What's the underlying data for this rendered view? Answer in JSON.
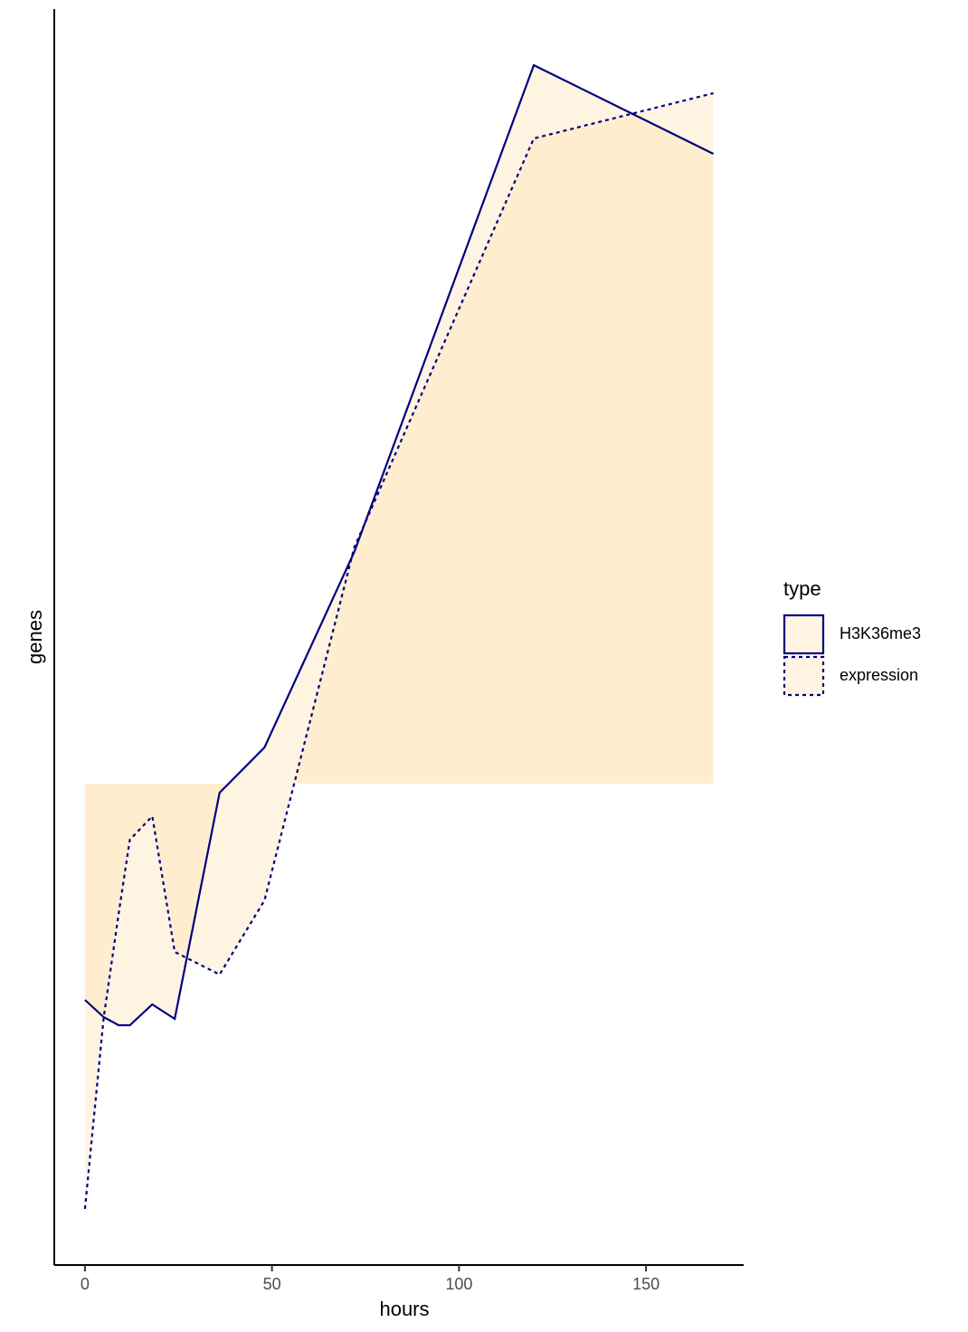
{
  "chart_data": {
    "type": "area",
    "x_label": "hours",
    "y_label": "genes",
    "x": [
      0,
      5,
      9,
      12,
      18,
      24,
      36,
      48,
      72,
      120,
      168
    ],
    "series": [
      {
        "name": "H3K36me3",
        "color": "#000080",
        "fill": "#FFE4B5",
        "linetype": "solid",
        "values": [
          -23.9,
          -25.8,
          -26.7,
          -26.7,
          -24.4,
          -26.0,
          -1.0,
          4.0,
          25.6,
          79.4,
          69.6
        ]
      },
      {
        "name": "expression",
        "color": "#000080",
        "fill": "#FFE4B5",
        "linetype": "dotted",
        "values": [
          -47.0,
          -25.9,
          -14.4,
          -6.2,
          -3.6,
          -18.6,
          -21.1,
          -12.9,
          26.1,
          71.3,
          76.3
        ]
      }
    ],
    "xlim": [
      -8.2,
      176.1
    ],
    "xticks": [
      0,
      50,
      100,
      150
    ],
    "ylim": [
      -53.2,
      85.6
    ],
    "legend": {
      "title": "type",
      "position": "right"
    }
  }
}
